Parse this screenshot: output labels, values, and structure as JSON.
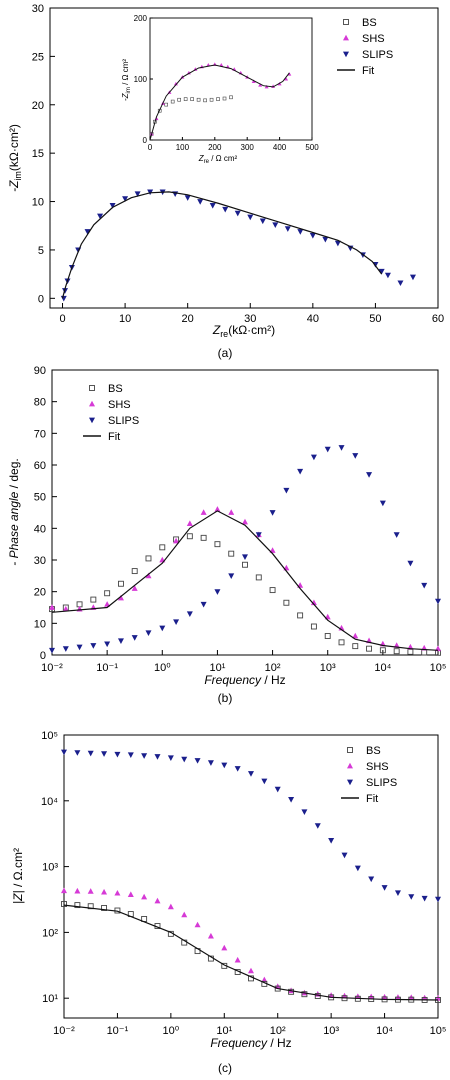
{
  "chart_data": [
    {
      "panel": "(a)",
      "type": "scatter",
      "xlabel": "Z",
      "xlabel_sub": "re",
      "xlabel_unit": "(kΩ·cm²)",
      "ylabel": "-Z",
      "ylabel_sub": "im",
      "ylabel_unit": "(kΩ·cm²)",
      "xlim": [
        -2,
        60
      ],
      "ylim": [
        -1,
        30
      ],
      "xticks": [
        0,
        10,
        20,
        30,
        40,
        50,
        60
      ],
      "yticks": [
        0,
        5,
        10,
        15,
        20,
        25,
        30
      ],
      "legend": [
        "BS",
        "SHS",
        "SLIPS",
        "Fit"
      ],
      "legend_position": "top-right",
      "series": [
        {
          "name": "SLIPS",
          "x": [
            0.2,
            0.4,
            0.8,
            1.5,
            2.5,
            4,
            6,
            8,
            10,
            12,
            14,
            16,
            18,
            20,
            22,
            24,
            26,
            28,
            30,
            32,
            34,
            36,
            38,
            40,
            42,
            44,
            46,
            48,
            50,
            51,
            52,
            54,
            56
          ],
          "y": [
            0.0,
            0.8,
            1.8,
            3.2,
            5.0,
            6.9,
            8.5,
            9.6,
            10.3,
            10.8,
            11.0,
            11.0,
            10.8,
            10.4,
            10.0,
            9.6,
            9.2,
            8.8,
            8.4,
            8.0,
            7.6,
            7.2,
            6.9,
            6.5,
            6.1,
            5.7,
            5.2,
            4.5,
            3.5,
            2.8,
            2.4,
            1.6,
            2.2
          ]
        },
        {
          "name": "Fit",
          "x": [
            0,
            0.5,
            1.5,
            3,
            5,
            8,
            11,
            14,
            17,
            20,
            25,
            30,
            35,
            40,
            44,
            47,
            49.5,
            51
          ],
          "y": [
            0,
            1.2,
            3.2,
            5.6,
            7.6,
            9.4,
            10.4,
            10.9,
            11.0,
            10.7,
            9.8,
            8.8,
            7.8,
            6.8,
            6.0,
            5.0,
            3.8,
            2.5
          ]
        }
      ],
      "inset": {
        "xlabel": "Z",
        "xlabel_sub": "re",
        "xlabel_unit": " / Ω cm²",
        "ylabel": "-Z",
        "ylabel_sub": "im",
        "ylabel_unit": " / Ω cm²",
        "xlim": [
          0,
          500
        ],
        "ylim": [
          0,
          200
        ],
        "xticks": [
          0,
          100,
          200,
          300,
          400,
          500
        ],
        "yticks": [
          0,
          100,
          200
        ],
        "series": [
          {
            "name": "BS",
            "x": [
              5,
              15,
              30,
              50,
              70,
              90,
              110,
              130,
              150,
              170,
              190,
              210,
              230,
              250
            ],
            "y": [
              10,
              30,
              48,
              58,
              63,
              66,
              67,
              67,
              66,
              65,
              66,
              67,
              68,
              70
            ]
          },
          {
            "name": "SHS",
            "x": [
              5,
              20,
              40,
              60,
              80,
              100,
              120,
              140,
              160,
              180,
              200,
              220,
              240,
              260,
              280,
              300,
              320,
              340,
              360,
              380,
              400,
              420,
              430
            ],
            "y": [
              10,
              35,
              60,
              78,
              92,
              103,
              110,
              116,
              120,
              123,
              124,
              123,
              120,
              116,
              110,
              103,
              96,
              90,
              87,
              88,
              92,
              100,
              108
            ]
          },
          {
            "name": "Fit",
            "x": [
              0,
              20,
              50,
              100,
              150,
              200,
              250,
              300,
              350,
              380,
              410,
              430
            ],
            "y": [
              0,
              38,
              72,
              103,
              118,
              123,
              117,
              103,
              89,
              87,
              96,
              110
            ]
          }
        ]
      }
    },
    {
      "panel": "(b)",
      "type": "scatter",
      "xlabel": "Frequency",
      "xlabel_unit": " / Hz",
      "ylabel": "- Phase angle",
      "ylabel_unit": " / deg.",
      "xscale": "log",
      "xlim": [
        0.01,
        100000
      ],
      "ylim": [
        0,
        90
      ],
      "xticks": [
        "10⁻²",
        "10⁻¹",
        "10⁰",
        "10¹",
        "10²",
        "10³",
        "10⁴",
        "10⁵"
      ],
      "yticks": [
        0,
        10,
        20,
        30,
        40,
        50,
        60,
        70,
        80,
        90
      ],
      "legend": [
        "BS",
        "SHS",
        "SLIPS",
        "Fit"
      ],
      "legend_position": "top-left",
      "series": [
        {
          "name": "BS",
          "x": [
            0.01,
            0.0178,
            0.0316,
            0.0562,
            0.1,
            0.178,
            0.316,
            0.562,
            1,
            1.78,
            3.16,
            5.62,
            10,
            17.8,
            31.6,
            56.2,
            100,
            178,
            316,
            562,
            1000,
            1780,
            3160,
            5620,
            10000,
            17800,
            31600,
            56200,
            100000
          ],
          "y": [
            14.5,
            15,
            16,
            17.5,
            19.5,
            22.5,
            26.5,
            30.5,
            34,
            36.5,
            37.5,
            37,
            35,
            32,
            28.5,
            24.5,
            20.5,
            16.5,
            12.5,
            9,
            6,
            4,
            2.8,
            2,
            1.5,
            1.2,
            1,
            0.8,
            0.7
          ]
        },
        {
          "name": "SHS",
          "x": [
            0.01,
            0.0178,
            0.0316,
            0.0562,
            0.1,
            0.178,
            0.316,
            0.562,
            1,
            1.78,
            3.16,
            5.62,
            10,
            17.8,
            31.6,
            56.2,
            100,
            178,
            316,
            562,
            1000,
            1780,
            3160,
            5620,
            10000,
            17800,
            31600,
            56200,
            100000
          ],
          "y": [
            15,
            14.5,
            14.5,
            15,
            16,
            18,
            21,
            25,
            30,
            36,
            41.5,
            45,
            46,
            45,
            42,
            38,
            33,
            27.5,
            22,
            16.5,
            12,
            8.5,
            6,
            4.5,
            3.5,
            3,
            2.5,
            2.2,
            2
          ]
        },
        {
          "name": "SLIPS",
          "x": [
            0.01,
            0.0178,
            0.0316,
            0.0562,
            0.1,
            0.178,
            0.316,
            0.562,
            1,
            1.78,
            3.16,
            5.62,
            10,
            17.8,
            31.6,
            56.2,
            100,
            178,
            316,
            562,
            1000,
            1780,
            3160,
            5620,
            10000,
            17800,
            31600,
            56200,
            100000
          ],
          "y": [
            1.5,
            2,
            2.5,
            3,
            3.5,
            4.5,
            5.5,
            7,
            8.5,
            10.5,
            13,
            16,
            20,
            25,
            31,
            38,
            45,
            52,
            58,
            62.5,
            65,
            65.5,
            63,
            57,
            48,
            38,
            29,
            22,
            17
          ]
        },
        {
          "name": "Fit",
          "x": [
            0.01,
            0.1,
            1,
            3.16,
            10,
            31.6,
            100,
            316,
            1000,
            3160,
            10000,
            31600,
            100000
          ],
          "y": [
            13.5,
            15,
            29,
            40,
            45.5,
            41,
            32,
            21,
            11,
            5,
            3,
            2,
            1.5
          ]
        }
      ]
    },
    {
      "panel": "(c)",
      "type": "scatter",
      "xlabel": "Frequency",
      "xlabel_unit": " / Hz",
      "ylabel": "|Z|",
      "ylabel_unit": " / Ω.cm²",
      "xscale": "log",
      "yscale": "log",
      "xlim": [
        0.01,
        100000
      ],
      "ylim": [
        5,
        100000
      ],
      "xticks": [
        "10⁻²",
        "10⁻¹",
        "10⁰",
        "10¹",
        "10²",
        "10³",
        "10⁴",
        "10⁵"
      ],
      "yticks": [
        "10¹",
        "10²",
        "10³",
        "10⁴",
        "10⁵"
      ],
      "legend": [
        "BS",
        "SHS",
        "SLIPS",
        "Fit"
      ],
      "legend_position": "top-right",
      "series": [
        {
          "name": "SLIPS",
          "x": [
            0.01,
            0.0178,
            0.0316,
            0.0562,
            0.1,
            0.178,
            0.316,
            0.562,
            1,
            1.78,
            3.16,
            5.62,
            10,
            17.8,
            31.6,
            56.2,
            100,
            178,
            316,
            562,
            1000,
            1780,
            3160,
            5620,
            10000,
            17800,
            31600,
            56200,
            100000
          ],
          "y": [
            55000,
            54000,
            53000,
            52000,
            51000,
            50000,
            48500,
            47000,
            45000,
            43000,
            41000,
            38000,
            35000,
            31000,
            26000,
            20000,
            15000,
            10500,
            6800,
            4200,
            2500,
            1500,
            950,
            650,
            480,
            400,
            350,
            330,
            320
          ]
        },
        {
          "name": "SHS",
          "x": [
            0.01,
            0.0178,
            0.0316,
            0.0562,
            0.1,
            0.178,
            0.316,
            0.562,
            1,
            1.78,
            3.16,
            5.62,
            10,
            17.8,
            31.6,
            56.2,
            100,
            178,
            316,
            562,
            1000,
            1780,
            3160,
            5620,
            10000,
            17800,
            31600,
            56200,
            100000
          ],
          "y": [
            430,
            425,
            420,
            410,
            395,
            375,
            345,
            300,
            245,
            185,
            130,
            88,
            58,
            38,
            26,
            19,
            15,
            13,
            12,
            11.5,
            11,
            10.8,
            10.6,
            10.5,
            10.4,
            10.3,
            10.2,
            10.1,
            10
          ]
        },
        {
          "name": "BS",
          "x": [
            0.01,
            0.0178,
            0.0316,
            0.0562,
            0.1,
            0.178,
            0.316,
            0.562,
            1,
            1.78,
            3.16,
            5.62,
            10,
            17.8,
            31.6,
            56.2,
            100,
            178,
            316,
            562,
            1000,
            1780,
            3160,
            5620,
            10000,
            17800,
            31600,
            56200,
            100000
          ],
          "y": [
            270,
            260,
            250,
            235,
            215,
            190,
            160,
            125,
            95,
            70,
            52,
            40,
            31,
            25,
            20,
            16.5,
            14,
            12.5,
            11.5,
            10.8,
            10.3,
            10,
            9.8,
            9.7,
            9.6,
            9.5,
            9.5,
            9.4,
            9.4
          ]
        },
        {
          "name": "Fit",
          "x": [
            0.01,
            0.1,
            1,
            10,
            100,
            1000,
            10000,
            100000
          ],
          "y": [
            260,
            210,
            100,
            32,
            14,
            10.3,
            9.6,
            9.4
          ]
        }
      ]
    }
  ],
  "captions": [
    "(a)",
    "(b)",
    "(c)"
  ],
  "colors": {
    "BS": "#444444",
    "SHS": "#d63ad6",
    "SLIPS": "#1a1f8c",
    "Fit": "#111111"
  }
}
